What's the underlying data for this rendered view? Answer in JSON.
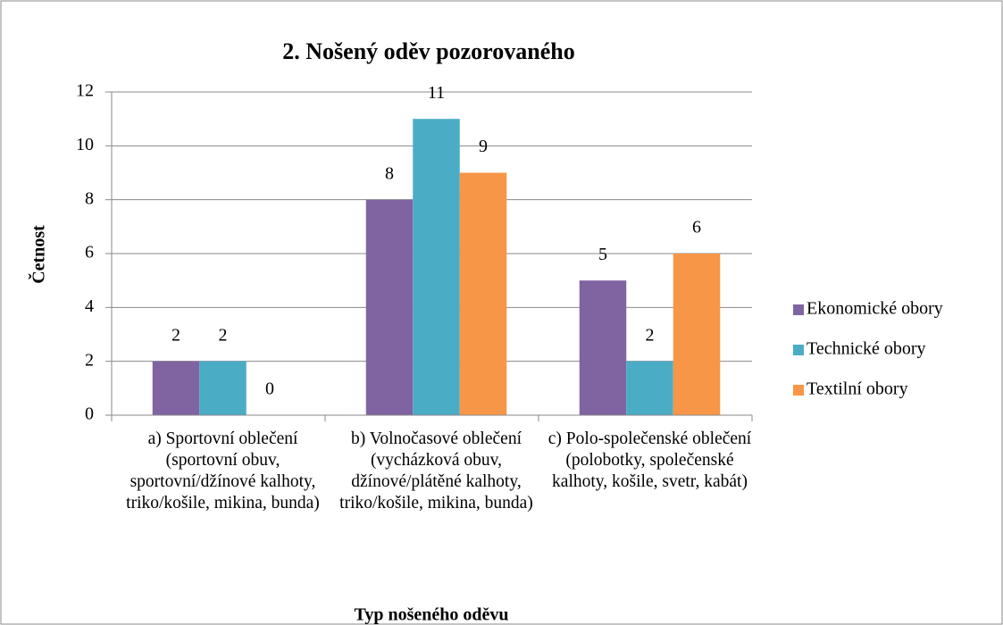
{
  "chart_data": {
    "type": "bar",
    "title": "2. Nošený oděv pozorovaného",
    "x_label": "Typ nošeného oděvu",
    "y_label": "Četnost",
    "categories": [
      "a) Sportovní oblečení (sportovní obuv, sportovní/džínové kalhoty, triko/košile, mikina, bunda)",
      "b) Volnočasové oblečení (vycházková obuv, džínové/plátěné kalhoty, triko/košile, mikina, bunda)",
      "c) Polo-společenské oblečení (polobotky, společenské kalhoty, košile, svetr, kabát)"
    ],
    "series": [
      {
        "name": "Ekonomické obory",
        "color": "#8064a2",
        "values": [
          2,
          8,
          5
        ]
      },
      {
        "name": "Technické obory",
        "color": "#4bacc6",
        "values": [
          2,
          11,
          2
        ]
      },
      {
        "name": "Textilní obory",
        "color": "#f79646",
        "values": [
          0,
          9,
          6
        ]
      }
    ],
    "ylim": [
      0,
      12
    ],
    "yticks": [
      0,
      2,
      4,
      6,
      8,
      10,
      12
    ],
    "grid": true,
    "legend": "right"
  }
}
